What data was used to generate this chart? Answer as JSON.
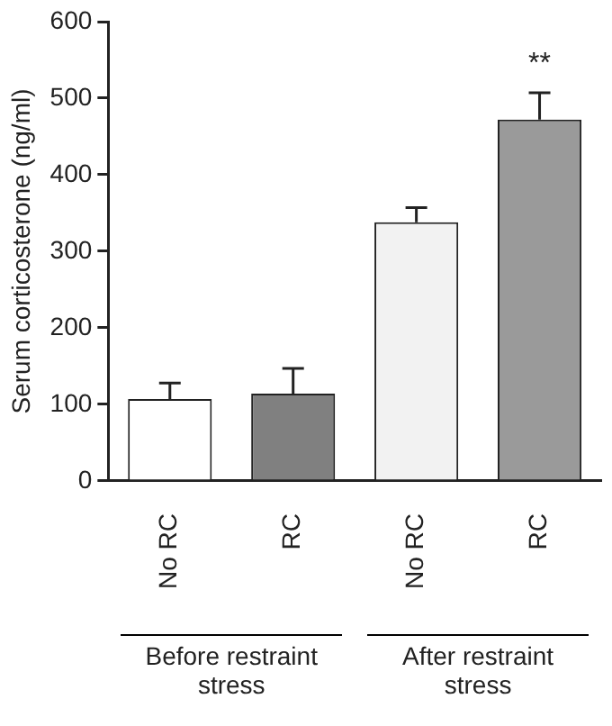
{
  "chart_data": {
    "type": "bar",
    "ylabel": "Serum corticosterone (ng/ml)",
    "categories": [
      "No RC",
      "RC",
      "No RC",
      "RC"
    ],
    "values": [
      107,
      114,
      338,
      472
    ],
    "colors": [
      "#ffffff",
      "#808080",
      "#f2f2f2",
      "#9a9a9a"
    ],
    "errors": [
      [
        107,
        128
      ],
      [
        114,
        147
      ],
      [
        338,
        357
      ],
      [
        472,
        507
      ]
    ],
    "ylim": [
      0,
      600
    ],
    "yticks": [
      0,
      100,
      200,
      300,
      400,
      500,
      600
    ],
    "grid": false,
    "legend": false,
    "annotations": [
      "**",
      "Before restraint stress",
      "After restraint stress"
    ]
  }
}
